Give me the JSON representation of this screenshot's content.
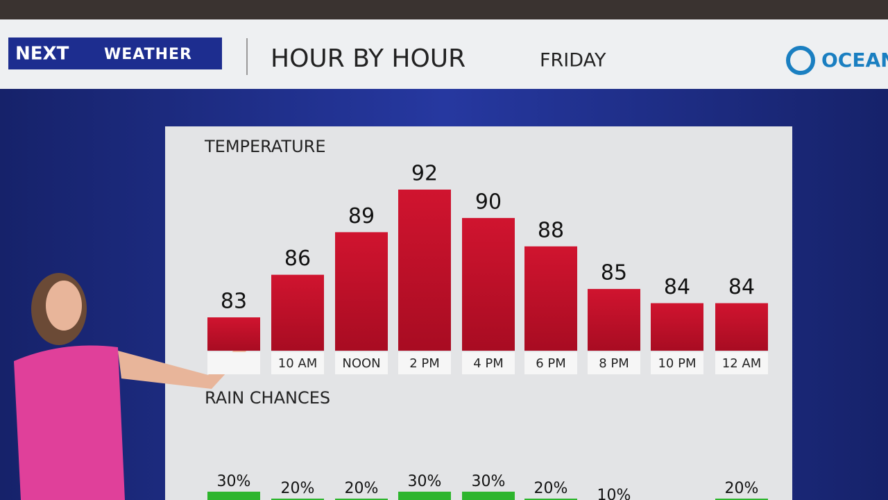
{
  "header": {
    "brand": "NEXT",
    "brand_sub": "WEATHER",
    "title": "HOUR BY HOUR",
    "day": "FRIDAY",
    "sponsor": "OCEAN"
  },
  "chart_data": [
    {
      "type": "bar",
      "title": "TEMPERATURE",
      "categories": [
        null,
        "10 AM",
        "NOON",
        "2 PM",
        "4 PM",
        "6 PM",
        "8 PM",
        "10 PM",
        "12 AM"
      ],
      "values": [
        83,
        86,
        89,
        92,
        90,
        88,
        85,
        84,
        84
      ],
      "color": "#c8102e"
    },
    {
      "type": "bar",
      "title": "RAIN CHANCES",
      "values": [
        30,
        20,
        20,
        30,
        30,
        20,
        10,
        null,
        20
      ],
      "value_labels": [
        "30%",
        "20%",
        "20%",
        "30%",
        "30%",
        "20%",
        "10%",
        null,
        "20%"
      ],
      "color": "#2db52d"
    }
  ]
}
